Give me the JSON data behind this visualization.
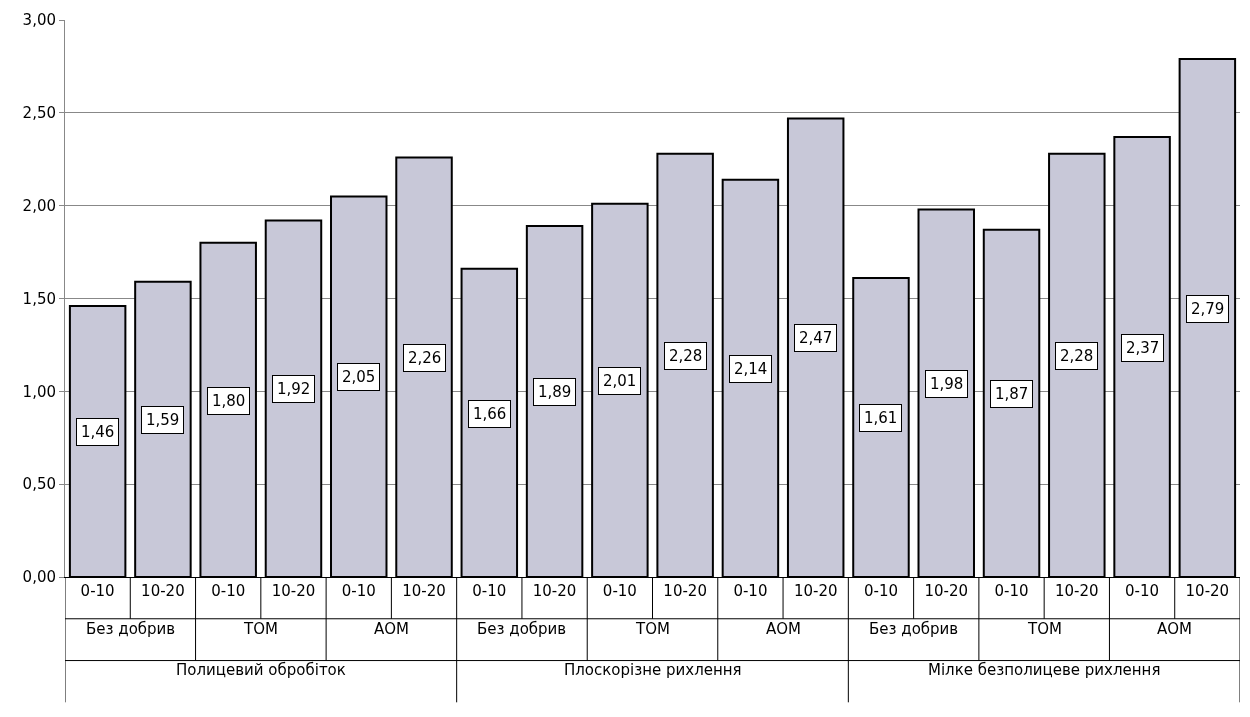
{
  "chart_data": {
    "type": "bar",
    "categories": [
      "0-10",
      "10-20",
      "0-10",
      "10-20",
      "0-10",
      "10-20",
      "0-10",
      "10-20",
      "0-10",
      "10-20",
      "0-10",
      "10-20",
      "0-10",
      "10-20",
      "0-10",
      "10-20",
      "0-10",
      "10-20"
    ],
    "values": [
      1.46,
      1.59,
      1.8,
      1.92,
      2.05,
      2.26,
      1.66,
      1.89,
      2.01,
      2.28,
      2.14,
      2.47,
      1.61,
      1.98,
      1.87,
      2.28,
      2.37,
      2.79
    ],
    "color": "#c8c8d8",
    "value_labels": [
      "1,46",
      "1,59",
      "1,80",
      "1,92",
      "2,05",
      "2,26",
      "1,66",
      "1,89",
      "2,01",
      "2,28",
      "2,14",
      "2,47",
      "1,61",
      "1,98",
      "1,87",
      "2,28",
      "2,37",
      "2,79"
    ],
    "ylim": [
      0,
      3
    ],
    "yticks": [
      {
        "value": 0,
        "label": "0,00"
      },
      {
        "value": 0.5,
        "label": "0,50"
      },
      {
        "value": 1,
        "label": "1,00"
      },
      {
        "value": 1.5,
        "label": "1,50"
      },
      {
        "value": 2,
        "label": "2,00"
      },
      {
        "value": 2.5,
        "label": "2,50"
      },
      {
        "value": 3,
        "label": "3,00"
      }
    ],
    "grid": "y",
    "annotations": [
      "Без добрив",
      "ТОМ",
      "АОМ",
      "Без добрив",
      "ТОМ",
      "АОМ",
      "Без добрив",
      "ТОМ",
      "АОМ",
      "Полицевий обробіток",
      "Плоскорізне рихлення",
      "Мілке безполицеве рихлення"
    ]
  }
}
